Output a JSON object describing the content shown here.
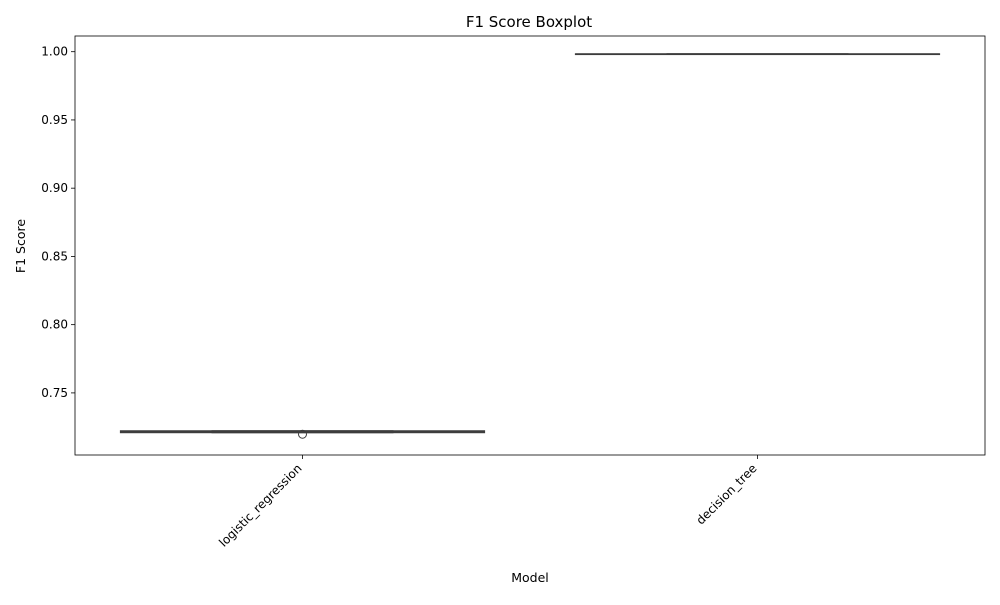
{
  "chart_data": {
    "type": "boxplot",
    "title": "F1 Score Boxplot",
    "xlabel": "Model",
    "ylabel": "F1 Score",
    "categories": [
      "logistic_regression",
      "decision_tree"
    ],
    "ylim": [
      0.7045,
      1.0115
    ],
    "yticks": [
      0.75,
      0.8,
      0.85,
      0.9,
      0.95,
      1.0
    ],
    "ytick_labels": [
      "0.75",
      "0.80",
      "0.85",
      "0.90",
      "0.95",
      "1.00"
    ],
    "boxes": [
      {
        "name": "logistic_regression",
        "whisker_low": 0.7209,
        "q1": 0.7209,
        "median": 0.7216,
        "q3": 0.7222,
        "whisker_high": 0.7222,
        "outliers": [
          0.7197
        ]
      },
      {
        "name": "decision_tree",
        "whisker_low": 0.9982,
        "q1": 0.9982,
        "median": 0.9982,
        "q3": 0.9984,
        "whisker_high": 0.9984,
        "outliers": []
      }
    ],
    "box_color": "#3d3d3d",
    "face_color": "#ffffff",
    "grid": false
  }
}
